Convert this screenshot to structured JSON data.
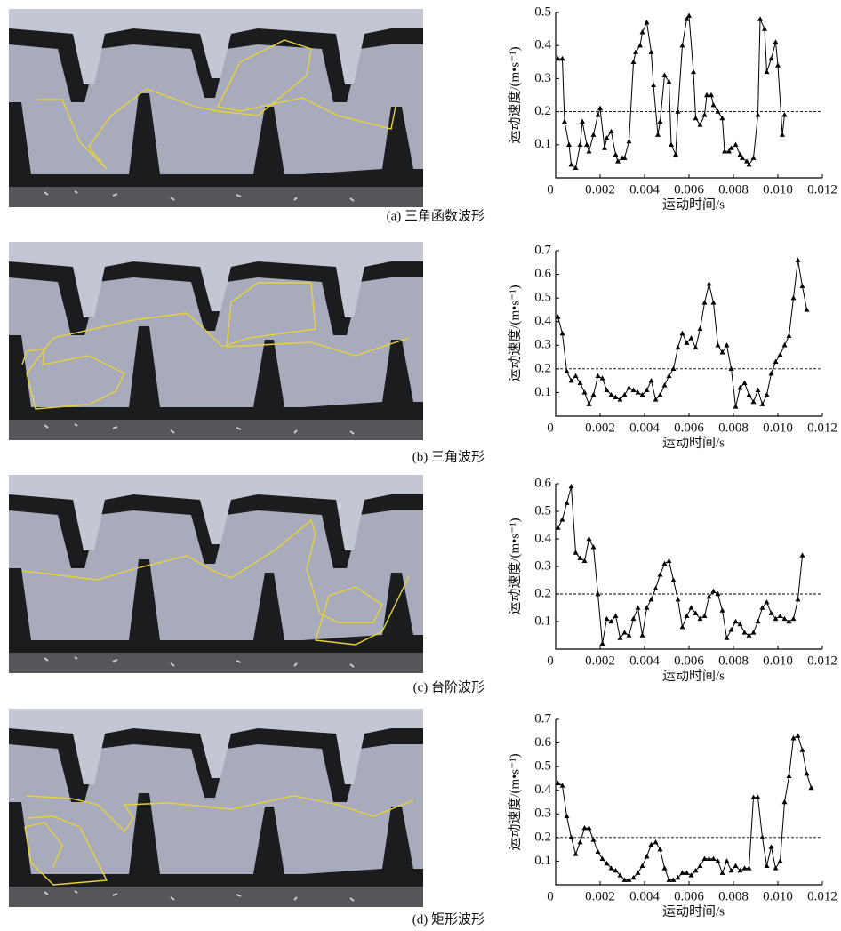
{
  "chart_data": [
    {
      "type": "line",
      "caption": "(a) 三角函数波形",
      "x_label": "运动时间/s",
      "y_label": "运动速度/(m•s⁻¹)",
      "color": "#000000",
      "marker": "triangle",
      "ref_line": 0.2,
      "xlim": [
        0,
        0.012
      ],
      "ylim": [
        0,
        0.5
      ],
      "xticks": [
        0,
        0.002,
        0.004,
        0.006,
        0.008,
        {
          "value": 0.01,
          "label": "0.010"
        },
        0.012
      ],
      "yticks": [
        0.1,
        0.2,
        0.3,
        0.4,
        0.5
      ],
      "x": [
        0.0001,
        0.0003,
        0.0004,
        0.0006,
        0.0007,
        0.0009,
        0.0011,
        0.0012,
        0.0014,
        0.0015,
        0.0017,
        0.0019,
        0.002,
        0.0022,
        0.0023,
        0.0025,
        0.0027,
        0.0028,
        0.003,
        0.0031,
        0.0033,
        0.0035,
        0.0036,
        0.0038,
        0.0039,
        0.0041,
        0.0043,
        0.0044,
        0.0046,
        0.0047,
        0.0049,
        0.0051,
        0.0052,
        0.0054,
        0.0055,
        0.0057,
        0.0059,
        0.006,
        0.0062,
        0.0063,
        0.0065,
        0.0067,
        0.0068,
        0.007,
        0.0071,
        0.0073,
        0.0075,
        0.0076,
        0.0078,
        0.0079,
        0.0081,
        0.0083,
        0.0084,
        0.0086,
        0.0087,
        0.0089,
        0.0091,
        0.0092,
        0.0094,
        0.0095,
        0.0097,
        0.0099,
        0.01,
        0.0102,
        0.0103
      ],
      "values": [
        0.36,
        0.36,
        0.17,
        0.1,
        0.04,
        0.03,
        0.1,
        0.17,
        0.1,
        0.08,
        0.13,
        0.19,
        0.21,
        0.09,
        0.12,
        0.14,
        0.07,
        0.05,
        0.06,
        0.06,
        0.11,
        0.35,
        0.38,
        0.4,
        0.44,
        0.47,
        0.38,
        0.28,
        0.13,
        0.17,
        0.31,
        0.29,
        0.1,
        0.07,
        0.2,
        0.4,
        0.48,
        0.49,
        0.32,
        0.18,
        0.16,
        0.19,
        0.25,
        0.25,
        0.22,
        0.2,
        0.18,
        0.08,
        0.08,
        0.09,
        0.1,
        0.07,
        0.06,
        0.05,
        0.04,
        0.06,
        0.19,
        0.48,
        0.45,
        0.32,
        0.36,
        0.41,
        0.34,
        0.13,
        0.19
      ]
    },
    {
      "type": "line",
      "caption": "(b) 三角波形",
      "x_label": "运动时间/s",
      "y_label": "运动速度/(m•s⁻¹)",
      "color": "#000000",
      "marker": "triangle",
      "ref_line": 0.2,
      "xlim": [
        0,
        0.012
      ],
      "ylim": [
        0,
        0.7
      ],
      "xticks": [
        0,
        0.002,
        0.004,
        0.006,
        0.008,
        {
          "value": 0.01,
          "label": "0.010"
        },
        0.012
      ],
      "yticks": [
        0.1,
        0.2,
        0.3,
        0.4,
        0.5,
        0.6,
        0.7
      ],
      "x": [
        0.0001,
        0.0003,
        0.0005,
        0.0007,
        0.0009,
        0.0011,
        0.0013,
        0.0015,
        0.0017,
        0.0019,
        0.0021,
        0.0023,
        0.0025,
        0.0027,
        0.0029,
        0.0031,
        0.0033,
        0.0035,
        0.0037,
        0.0039,
        0.0041,
        0.0043,
        0.0045,
        0.0047,
        0.0049,
        0.0051,
        0.0053,
        0.0055,
        0.0057,
        0.0059,
        0.0061,
        0.0063,
        0.0065,
        0.0067,
        0.0069,
        0.0071,
        0.0073,
        0.0075,
        0.0077,
        0.0079,
        0.0081,
        0.0083,
        0.0085,
        0.0087,
        0.0089,
        0.0091,
        0.0093,
        0.0095,
        0.0097,
        0.0099,
        0.0101,
        0.0103,
        0.0105,
        0.0107,
        0.0109,
        0.0111,
        0.0113
      ],
      "values": [
        0.42,
        0.35,
        0.19,
        0.15,
        0.17,
        0.14,
        0.1,
        0.05,
        0.09,
        0.17,
        0.16,
        0.11,
        0.09,
        0.08,
        0.07,
        0.09,
        0.12,
        0.11,
        0.1,
        0.09,
        0.11,
        0.15,
        0.07,
        0.09,
        0.13,
        0.17,
        0.2,
        0.29,
        0.35,
        0.31,
        0.33,
        0.29,
        0.37,
        0.48,
        0.56,
        0.48,
        0.3,
        0.27,
        0.3,
        0.2,
        0.04,
        0.12,
        0.14,
        0.09,
        0.06,
        0.11,
        0.05,
        0.09,
        0.18,
        0.23,
        0.26,
        0.3,
        0.34,
        0.5,
        0.66,
        0.55,
        0.45
      ]
    },
    {
      "type": "line",
      "caption": "(c) 台阶波形",
      "x_label": "运动时间/s",
      "y_label": "运动速度/(m•s⁻¹)",
      "color": "#000000",
      "marker": "triangle",
      "ref_line": 0.2,
      "xlim": [
        0,
        0.012
      ],
      "ylim": [
        0,
        0.6
      ],
      "xticks": [
        0,
        0.002,
        0.004,
        0.006,
        0.008,
        {
          "value": 0.01,
          "label": "0.010"
        },
        0.012
      ],
      "yticks": [
        0.1,
        0.2,
        0.3,
        0.4,
        0.5,
        0.6
      ],
      "x": [
        0.0001,
        0.0003,
        0.0005,
        0.0007,
        0.0009,
        0.0011,
        0.0013,
        0.0015,
        0.0017,
        0.0019,
        0.0021,
        0.0023,
        0.0025,
        0.0027,
        0.0029,
        0.0031,
        0.0033,
        0.0035,
        0.0037,
        0.0039,
        0.0041,
        0.0043,
        0.0045,
        0.0047,
        0.0049,
        0.0051,
        0.0053,
        0.0055,
        0.0057,
        0.0059,
        0.0061,
        0.0063,
        0.0065,
        0.0067,
        0.0069,
        0.0071,
        0.0073,
        0.0075,
        0.0077,
        0.0079,
        0.0081,
        0.0083,
        0.0085,
        0.0087,
        0.0089,
        0.0091,
        0.0093,
        0.0095,
        0.0097,
        0.0099,
        0.0101,
        0.0103,
        0.0105,
        0.0107,
        0.0109,
        0.0111
      ],
      "values": [
        0.44,
        0.47,
        0.53,
        0.59,
        0.35,
        0.33,
        0.32,
        0.4,
        0.37,
        0.2,
        0.02,
        0.11,
        0.1,
        0.12,
        0.04,
        0.06,
        0.05,
        0.11,
        0.15,
        0.05,
        0.15,
        0.18,
        0.22,
        0.27,
        0.31,
        0.32,
        0.25,
        0.18,
        0.08,
        0.12,
        0.15,
        0.13,
        0.11,
        0.12,
        0.19,
        0.21,
        0.2,
        0.14,
        0.04,
        0.07,
        0.1,
        0.09,
        0.06,
        0.05,
        0.06,
        0.1,
        0.15,
        0.17,
        0.13,
        0.11,
        0.12,
        0.11,
        0.1,
        0.11,
        0.18,
        0.34
      ]
    },
    {
      "type": "line",
      "caption": "(d) 矩形波形",
      "x_label": "运动时间/s",
      "y_label": "运动速度/(m•s⁻¹)",
      "color": "#000000",
      "marker": "triangle",
      "ref_line": 0.2,
      "xlim": [
        0,
        0.012
      ],
      "ylim": [
        0,
        0.7
      ],
      "xticks": [
        0,
        0.002,
        0.004,
        0.006,
        0.008,
        {
          "value": 0.01,
          "label": "0.010"
        },
        0.012
      ],
      "yticks": [
        0.1,
        0.2,
        0.3,
        0.4,
        0.5,
        0.6,
        0.7
      ],
      "x": [
        0.0001,
        0.0003,
        0.0005,
        0.0007,
        0.0009,
        0.0011,
        0.0013,
        0.0015,
        0.0017,
        0.0019,
        0.0021,
        0.0023,
        0.0025,
        0.0027,
        0.0029,
        0.0031,
        0.0033,
        0.0035,
        0.0037,
        0.0039,
        0.0041,
        0.0043,
        0.0045,
        0.0047,
        0.0049,
        0.0051,
        0.0053,
        0.0055,
        0.0057,
        0.0059,
        0.0061,
        0.0063,
        0.0065,
        0.0067,
        0.0069,
        0.0071,
        0.0073,
        0.0075,
        0.0077,
        0.0079,
        0.0081,
        0.0083,
        0.0085,
        0.0087,
        0.0089,
        0.0091,
        0.0093,
        0.0095,
        0.0097,
        0.0099,
        0.0101,
        0.0103,
        0.0105,
        0.0107,
        0.0109,
        0.0111,
        0.0113,
        0.0115
      ],
      "values": [
        0.43,
        0.42,
        0.29,
        0.2,
        0.13,
        0.18,
        0.24,
        0.24,
        0.19,
        0.14,
        0.11,
        0.09,
        0.07,
        0.06,
        0.04,
        0.02,
        0.02,
        0.03,
        0.05,
        0.08,
        0.12,
        0.17,
        0.18,
        0.15,
        0.07,
        0.02,
        0.02,
        0.03,
        0.05,
        0.05,
        0.04,
        0.06,
        0.08,
        0.11,
        0.11,
        0.11,
        0.1,
        0.05,
        0.1,
        0.06,
        0.08,
        0.06,
        0.07,
        0.07,
        0.37,
        0.37,
        0.2,
        0.08,
        0.16,
        0.07,
        0.1,
        0.35,
        0.46,
        0.62,
        0.63,
        0.57,
        0.47,
        0.41
      ]
    }
  ]
}
